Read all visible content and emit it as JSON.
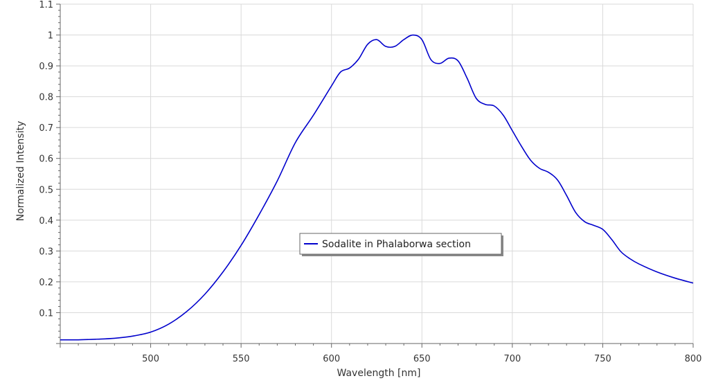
{
  "chart_data": {
    "type": "line",
    "title": "",
    "xlabel": "Wavelength [nm]",
    "ylabel": "Normalized Intensity",
    "xlim": [
      450,
      800
    ],
    "ylim": [
      0.0,
      1.1
    ],
    "x_ticks": [
      500,
      550,
      600,
      650,
      700,
      750,
      800
    ],
    "x_tick_labels": [
      "500",
      "550",
      "600",
      "650",
      "700",
      "750",
      "800"
    ],
    "y_ticks": [
      0.1,
      0.2,
      0.3,
      0.4,
      0.5,
      0.6,
      0.7,
      0.8,
      0.9,
      1.0,
      1.1
    ],
    "y_tick_labels": [
      "0.1",
      "0.2",
      "0.3",
      "0.4",
      "0.5",
      "0.6",
      "0.7",
      "0.8",
      "0.9",
      "1",
      "1.1"
    ],
    "grid": true,
    "legend_position": "center",
    "series": [
      {
        "name": "Sodalite in Phalaborwa section",
        "color": "#0000cc",
        "x": [
          450,
          460,
          470,
          480,
          490,
          500,
          510,
          520,
          530,
          540,
          550,
          560,
          570,
          580,
          590,
          600,
          605,
          610,
          615,
          620,
          625,
          630,
          635,
          640,
          645,
          650,
          655,
          660,
          665,
          670,
          675,
          680,
          685,
          690,
          695,
          700,
          705,
          710,
          715,
          720,
          725,
          730,
          735,
          740,
          745,
          750,
          755,
          760,
          765,
          770,
          780,
          790,
          800
        ],
        "y": [
          0.012,
          0.012,
          0.014,
          0.017,
          0.024,
          0.037,
          0.063,
          0.104,
          0.16,
          0.232,
          0.318,
          0.418,
          0.527,
          0.651,
          0.74,
          0.835,
          0.88,
          0.893,
          0.922,
          0.97,
          0.985,
          0.963,
          0.963,
          0.985,
          1.0,
          0.985,
          0.92,
          0.908,
          0.925,
          0.916,
          0.86,
          0.795,
          0.775,
          0.77,
          0.74,
          0.69,
          0.64,
          0.595,
          0.568,
          0.555,
          0.53,
          0.48,
          0.425,
          0.395,
          0.383,
          0.37,
          0.337,
          0.298,
          0.275,
          0.258,
          0.232,
          0.212,
          0.196
        ]
      }
    ]
  }
}
